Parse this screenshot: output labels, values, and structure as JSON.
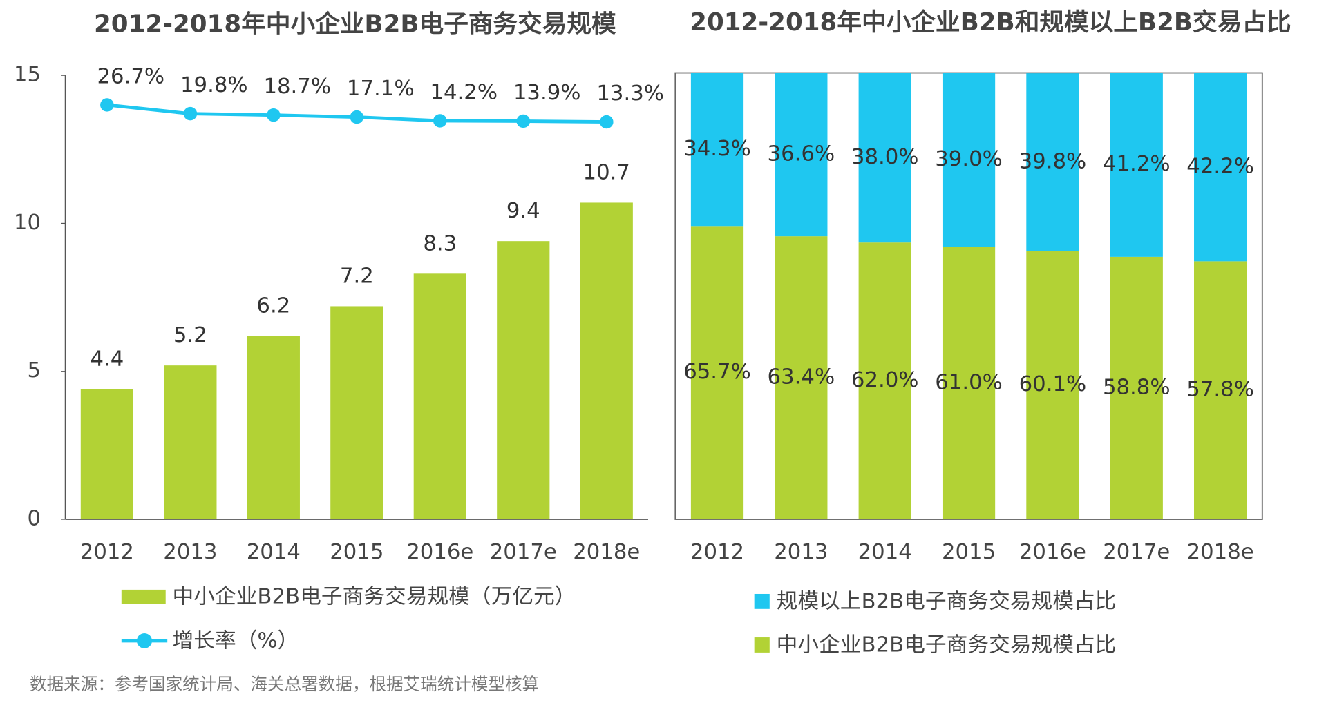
{
  "chart_data": [
    {
      "type": "bar",
      "title": "2012-2018年中小企业B2B电子商务交易规模",
      "categories": [
        "2012",
        "2013",
        "2014",
        "2015",
        "2016e",
        "2017e",
        "2018e"
      ],
      "ylim": [
        0,
        15
      ],
      "yticks": [
        0,
        5,
        10,
        15
      ],
      "y2lim": [
        -300,
        50
      ],
      "series": [
        {
          "name": "中小企业B2B电子商务交易规模（万亿元）",
          "color": "#b2d235",
          "values": [
            4.4,
            5.2,
            6.2,
            7.2,
            8.3,
            9.4,
            10.7
          ]
        },
        {
          "name": "增长率（%）",
          "type": "line",
          "axis": "y2",
          "color": "#1fc7f0",
          "values": [
            26.7,
            19.8,
            18.7,
            17.1,
            14.2,
            13.9,
            13.3
          ],
          "value_labels": [
            "26.7%",
            "19.8%",
            "18.7%",
            "17.1%",
            "14.2%",
            "13.9%",
            "13.3%"
          ]
        }
      ]
    },
    {
      "type": "stacked_bar",
      "title": "2012-2018年中小企业B2B和规模以上B2B交易占比",
      "categories": [
        "2012",
        "2013",
        "2014",
        "2015",
        "2016e",
        "2017e",
        "2018e"
      ],
      "ylim": [
        0,
        100
      ],
      "series": [
        {
          "name": "中小企业B2B电子商务交易规模占比",
          "color": "#b2d235",
          "values": [
            65.7,
            63.4,
            62.0,
            61.0,
            60.1,
            58.8,
            57.8
          ],
          "value_labels": [
            "65.7%",
            "63.4%",
            "62.0%",
            "61.0%",
            "60.1%",
            "58.8%",
            "57.8%"
          ]
        },
        {
          "name": "规模以上B2B电子商务交易规模占比",
          "color": "#1fc7f0",
          "values": [
            34.3,
            36.6,
            38.0,
            39.0,
            39.8,
            41.2,
            42.2
          ],
          "value_labels": [
            "34.3%",
            "36.6%",
            "38.0%",
            "39.0%",
            "39.8%",
            "41.2%",
            "42.2%"
          ]
        }
      ]
    }
  ],
  "source": "数据来源：参考国家统计局、海关总署数据，根据艾瑞统计模型核算"
}
